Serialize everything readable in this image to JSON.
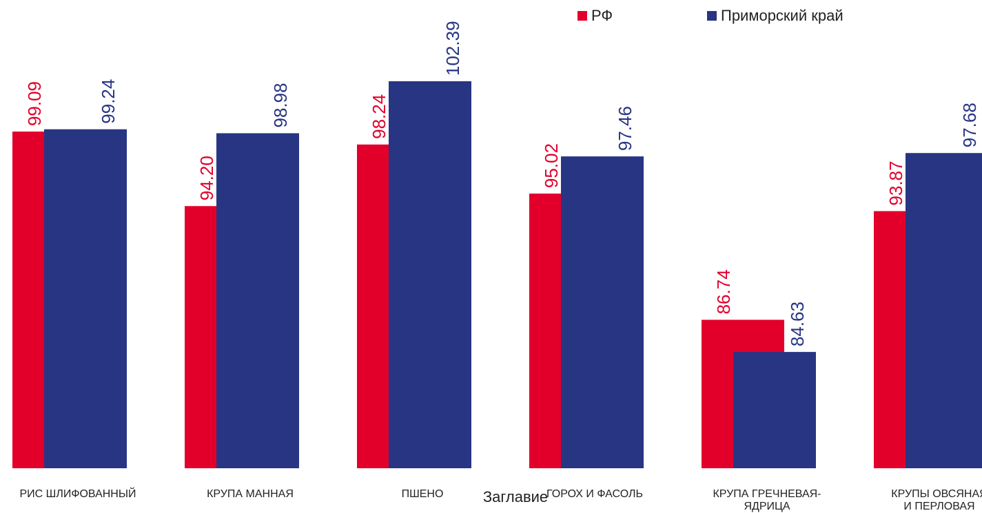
{
  "chart_data": {
    "type": "bar",
    "title": "",
    "xlabel": "Заглавие",
    "ylabel": "",
    "ylim": [
      77,
      103
    ],
    "grid": false,
    "legend_position": "top",
    "categories": [
      [
        "РИС ШЛИФОВАННЫЙ"
      ],
      [
        "КРУПА МАННАЯ"
      ],
      [
        "ПШЕНО"
      ],
      [
        "ГОРОХ И ФАСОЛЬ"
      ],
      [
        "КРУПА ГРЕЧНЕВАЯ-",
        "ЯДРИЦА"
      ],
      [
        "КРУПЫ ОВСЯНАЯ",
        "И ПЕРЛОВАЯ"
      ]
    ],
    "series": [
      {
        "name": "РФ",
        "color": "#e2002b",
        "values": [
          99.09,
          94.2,
          98.24,
          95.02,
          86.74,
          93.87
        ]
      },
      {
        "name": "Приморский край",
        "color": "#283583",
        "values": [
          99.24,
          98.98,
          102.39,
          97.46,
          84.63,
          97.68
        ]
      }
    ]
  }
}
